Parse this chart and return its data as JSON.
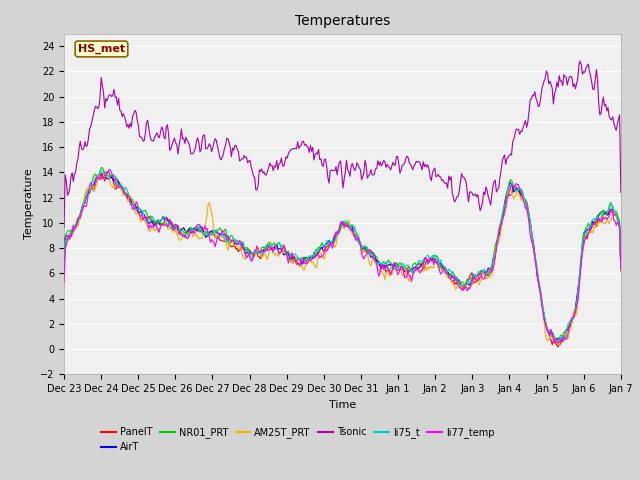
{
  "title": "Temperatures",
  "xlabel": "Time",
  "ylabel": "Temperature",
  "ylim": [
    -2,
    25
  ],
  "yticks": [
    -2,
    0,
    2,
    4,
    6,
    8,
    10,
    12,
    14,
    16,
    18,
    20,
    22,
    24
  ],
  "xtick_labels": [
    "Dec 23",
    "Dec 24",
    "Dec 25",
    "Dec 26",
    "Dec 27",
    "Dec 28",
    "Dec 29",
    "Dec 30",
    "Dec 31",
    "Jan 1",
    "Jan 2",
    "Jan 3",
    "Jan 4",
    "Jan 5",
    "Jan 6",
    "Jan 7"
  ],
  "series_colors": {
    "PanelT": "#ff0000",
    "AirT": "#0000ee",
    "NR01_PRT": "#00cc00",
    "AM25T_PRT": "#ffaa00",
    "Tsonic": "#aa00aa",
    "li75_t": "#00cccc",
    "li77_temp": "#ff00ff"
  },
  "label_box_text": "HS_met",
  "label_box_bg": "#ffffcc",
  "label_box_edge": "#886600",
  "label_box_text_color": "#880000",
  "fig_bg_color": "#d4d4d4",
  "plot_bg_color": "#f0f0f0",
  "grid_color": "#ffffff",
  "title_fontsize": 10,
  "axis_label_fontsize": 8,
  "tick_fontsize": 7,
  "legend_fontsize": 7,
  "n_points": 480
}
